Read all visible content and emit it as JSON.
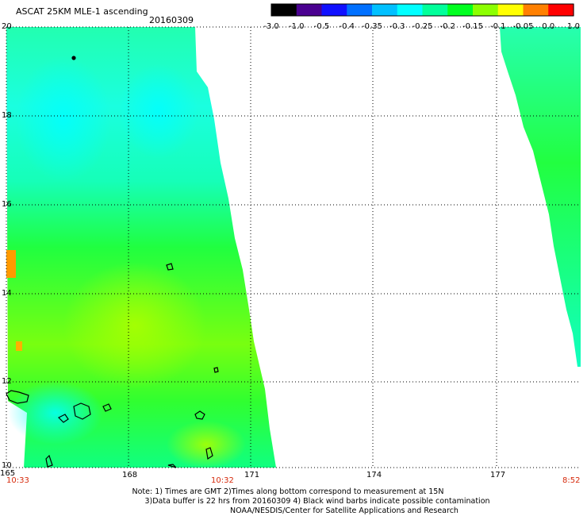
{
  "title": {
    "product": "ASCAT 25KM MLE-1 ascending",
    "date": "20160309"
  },
  "colorbar": {
    "labels": [
      "-3.0",
      "-1.0",
      "-0.5",
      "-0.4",
      "-0.35",
      "-0.3",
      "-0.25",
      "-0.2",
      "-0.15",
      "-0.1",
      "-0.05",
      "0.0",
      "1.0"
    ],
    "colors": [
      "#000000",
      "#4a0090",
      "#1010ff",
      "#0070ff",
      "#00c0ff",
      "#00ffff",
      "#00ff9a",
      "#00ff20",
      "#8cff00",
      "#ffff00",
      "#ff8000",
      "#ff0000"
    ]
  },
  "axes": {
    "y_ticks": [
      "20",
      "18",
      "16",
      "14",
      "12",
      "10"
    ],
    "x_ticks": [
      "165",
      "168",
      "171",
      "174",
      "177"
    ]
  },
  "times": {
    "left": "10:33",
    "middle": "10:32",
    "right": "8:52"
  },
  "notes": [
    "Note: 1) Times are GMT 2)Times along bottom correspond to measurement at 15N",
    "3)Data buffer is 22 hrs from 20160309 4) Black wind barbs indicate possible contamination",
    "NOAA/NESDIS/Center for Satellite Applications and Research"
  ]
}
